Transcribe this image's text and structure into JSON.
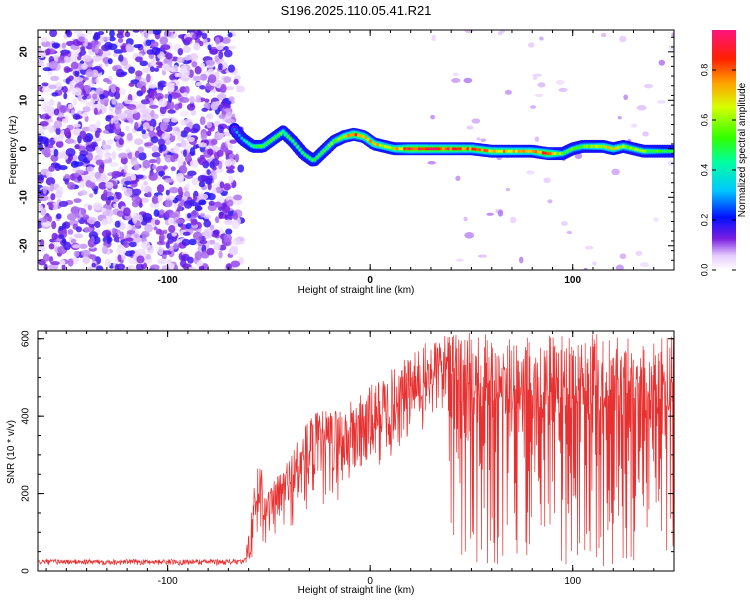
{
  "chart_data": [
    {
      "type": "heatmap",
      "title": "S196.2025.110.05.41.R21",
      "xlabel": "Height of straight line (km)",
      "ylabel": "Frequency (Hz)",
      "xlim": [
        -164,
        150
      ],
      "ylim": [
        -25,
        24.5
      ],
      "xticks": [
        -100,
        0,
        100
      ],
      "xtick_labels": [
        "-100",
        "0",
        "100"
      ],
      "yticks": [
        -20,
        -10,
        0,
        10,
        20
      ],
      "ytick_labels": [
        "-20",
        "-10",
        "0",
        "10",
        "20"
      ],
      "grid": false,
      "colorbar": {
        "label": "Normalized spectral amplitude",
        "range": [
          0,
          0.96
        ],
        "ticks": [
          0.0,
          0.2,
          0.4,
          0.6,
          0.8
        ],
        "tick_labels": [
          "0.0",
          "0.2",
          "0.4",
          "0.6",
          "0.8"
        ],
        "colormap": "rainbow (white-violet-blue-cyan-green-yellow-orange-red-magenta)"
      },
      "noise_region": {
        "x": [
          -164,
          -69
        ],
        "amplitude": "0.0-0.2"
      },
      "ridge": {
        "x": [
          -67,
          -63,
          -58,
          -53,
          -48,
          -43,
          -38,
          -33,
          -28,
          -23,
          -18,
          -13,
          -8,
          -3,
          2,
          7,
          12,
          20,
          30,
          40,
          50,
          60,
          70,
          80,
          88,
          95,
          100,
          105,
          110,
          115,
          120,
          125,
          130,
          135,
          140,
          145,
          150
        ],
        "y": [
          4,
          2,
          0.5,
          0.5,
          2,
          3.5,
          1.5,
          -1,
          -2.5,
          -0.5,
          1.5,
          2.5,
          3,
          2.5,
          1,
          0.5,
          0,
          0,
          0,
          0,
          0,
          -0.5,
          -0.5,
          -0.5,
          -1,
          -1,
          0,
          0.5,
          0.5,
          0.5,
          0,
          0.5,
          0,
          -0.5,
          -0.5,
          -0.5,
          -0.5
        ],
        "amplitude": [
          0.3,
          0.4,
          0.5,
          0.55,
          0.55,
          0.55,
          0.5,
          0.5,
          0.5,
          0.55,
          0.6,
          0.7,
          0.85,
          0.8,
          0.75,
          0.7,
          0.7,
          0.95,
          0.92,
          0.9,
          0.85,
          0.8,
          0.75,
          0.72,
          0.9,
          0.55,
          0.55,
          0.6,
          0.65,
          0.7,
          0.7,
          0.65,
          0.6,
          0.6,
          0.55,
          0.5,
          0.5
        ]
      }
    },
    {
      "type": "line",
      "xlabel": "Height of straight line (km)",
      "ylabel": "SNR (10 * v/v)",
      "xlim": [
        -164,
        150
      ],
      "ylim": [
        0,
        620
      ],
      "xticks": [
        -100,
        0,
        100
      ],
      "xtick_labels": [
        "-100",
        "0",
        "100"
      ],
      "yticks": [
        0,
        200,
        400,
        600
      ],
      "ytick_labels": [
        "0",
        "200",
        "400",
        "600"
      ],
      "grid": false,
      "color": "#e83030",
      "series_envelope": {
        "x": [
          -164,
          -62,
          -60,
          -55,
          -50,
          -40,
          -30,
          -20,
          -10,
          0,
          10,
          20,
          30,
          38,
          40,
          45,
          50,
          60,
          80,
          100,
          120,
          140,
          150
        ],
        "lower": [
          15,
          15,
          20,
          50,
          70,
          100,
          130,
          160,
          200,
          240,
          280,
          320,
          360,
          400,
          60,
          20,
          10,
          10,
          10,
          10,
          10,
          10,
          10
        ],
        "upper": [
          30,
          30,
          100,
          320,
          210,
          300,
          410,
          420,
          440,
          480,
          520,
          560,
          600,
          615,
          620,
          620,
          620,
          615,
          615,
          615,
          615,
          615,
          615
        ]
      }
    }
  ]
}
